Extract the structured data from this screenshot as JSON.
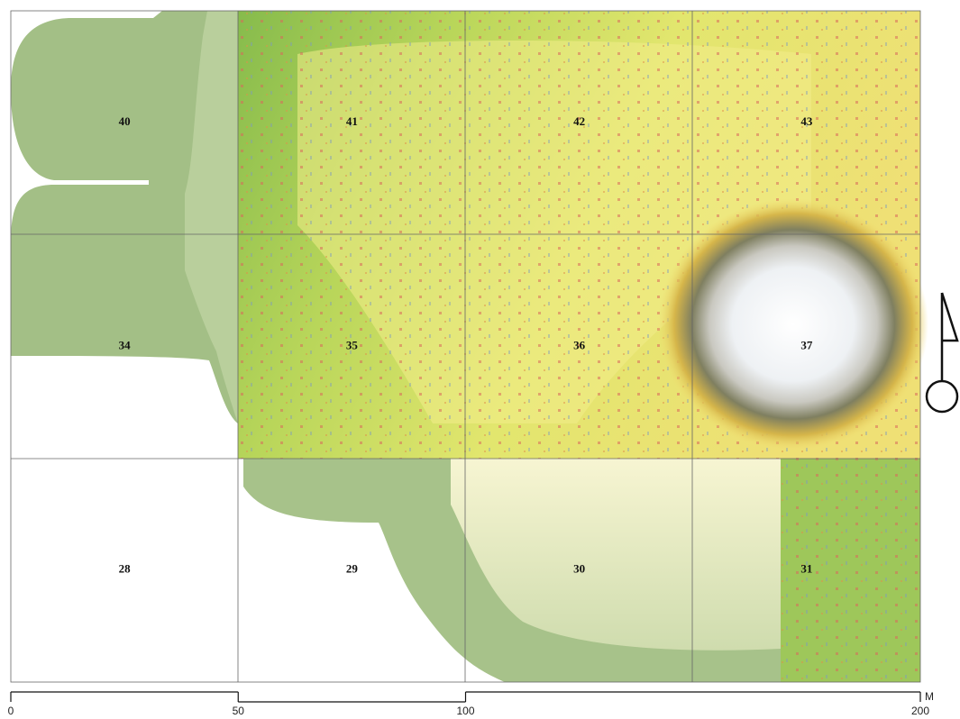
{
  "grid": {
    "rows": [
      [
        "40",
        "41",
        "42",
        "43"
      ],
      [
        "34",
        "35",
        "36",
        "37"
      ],
      [
        "28",
        "29",
        "30",
        "31"
      ]
    ]
  },
  "scale_bar": {
    "ticks": [
      0,
      50,
      100,
      200
    ],
    "unit": "M"
  }
}
